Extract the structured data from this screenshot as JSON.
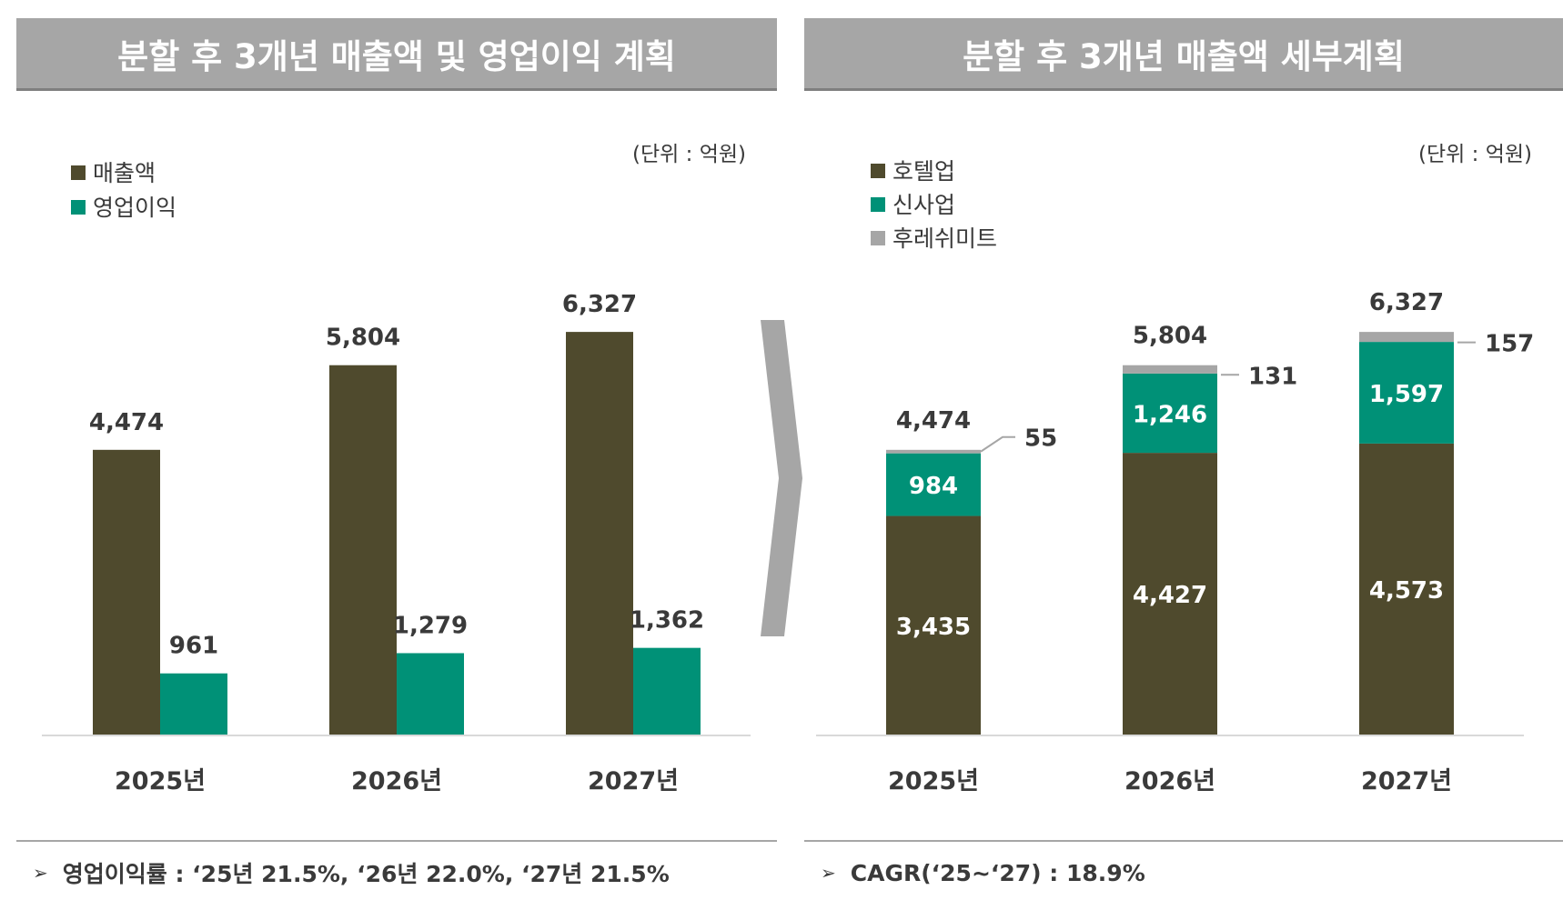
{
  "colors": {
    "header_bg": "#a6a6a6",
    "revenue": "#4f4a2d",
    "operating_profit": "#009177",
    "hotel": "#4f4a2d",
    "new_business": "#009177",
    "hurrays_meat": "#a6a6a6"
  },
  "left_panel": {
    "header": "분할 후 3개년 매출액 및 영업이익 계획",
    "note": "영업이익률 : ‘25년 21.5%, ‘26년 22.0%, ‘27년 21.5%",
    "bullet": "➢"
  },
  "right_panel": {
    "header": "분할 후 3개년 매출액 세부계획",
    "note": "CAGR(‘25~‘27) : 18.9%",
    "bullet": "➢"
  },
  "chart_data": [
    {
      "type": "bar",
      "unit_label": "(단위 : 억원)",
      "categories": [
        "2025년",
        "2026년",
        "2027년"
      ],
      "series": [
        {
          "name": "매출액",
          "values": [
            4474,
            5804,
            6327
          ],
          "labels": [
            "4,474",
            "5,804",
            "6,327"
          ],
          "color": "#4f4a2d"
        },
        {
          "name": "영업이익",
          "values": [
            961,
            1279,
            1362
          ],
          "labels": [
            "961",
            "1,279",
            "1,362"
          ],
          "color": "#009177"
        }
      ],
      "ylim": [
        0,
        6800
      ],
      "grid": false,
      "legend": "top-left"
    },
    {
      "type": "bar",
      "stacked": true,
      "unit_label": "(단위 : 억원)",
      "categories": [
        "2025년",
        "2026년",
        "2027년"
      ],
      "series": [
        {
          "name": "호텔업",
          "values": [
            3435,
            4427,
            4573
          ],
          "labels": [
            "3,435",
            "4,427",
            "4,573"
          ],
          "color": "#4f4a2d"
        },
        {
          "name": "신사업",
          "values": [
            984,
            1246,
            1597
          ],
          "labels": [
            "984",
            "1,246",
            "1,597"
          ],
          "color": "#009177"
        },
        {
          "name": "후레쉬미트",
          "values": [
            55,
            131,
            157
          ],
          "labels": [
            "55",
            "131",
            "157"
          ],
          "color": "#a6a6a6"
        }
      ],
      "totals": [
        4474,
        5804,
        6327
      ],
      "total_labels": [
        "4,474",
        "5,804",
        "6,327"
      ],
      "ylim": [
        0,
        6800
      ],
      "grid": false,
      "legend": "top-left"
    }
  ]
}
